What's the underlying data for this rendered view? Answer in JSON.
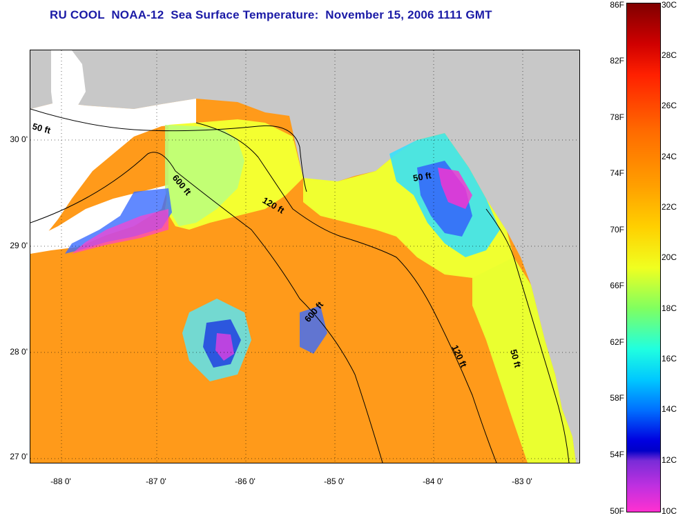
{
  "title": "RU COOL  NOAA-12  Sea Surface Temperature:  November 15, 2006 1111 GMT",
  "lat_labels": [
    "30 0'",
    "29 0'",
    "28 0'",
    "27 0'"
  ],
  "lon_labels": [
    "-88 0'",
    "-87 0'",
    "-86 0'",
    "-85 0'",
    "-84 0'",
    "-83 0'"
  ],
  "colorbar": {
    "f_labels": [
      "86F",
      "82F",
      "78F",
      "74F",
      "70F",
      "66F",
      "62F",
      "58F",
      "54F",
      "50F"
    ],
    "c_labels": [
      "30C",
      "28C",
      "26C",
      "24C",
      "22C",
      "20C",
      "18C",
      "16C",
      "14C",
      "12C",
      "10C"
    ]
  },
  "contours": {
    "c50_west": "50 ft",
    "c600_west": "600 ft",
    "c120_mid": "120 ft",
    "c50_east": "50 ft",
    "c600_mid": "600 ft",
    "c120_se": "120 ft",
    "c50_se": "50 ft"
  },
  "colors": {
    "title": "#1a1aa6",
    "land": "#c8c8c8",
    "cloud": "#ffffff"
  }
}
